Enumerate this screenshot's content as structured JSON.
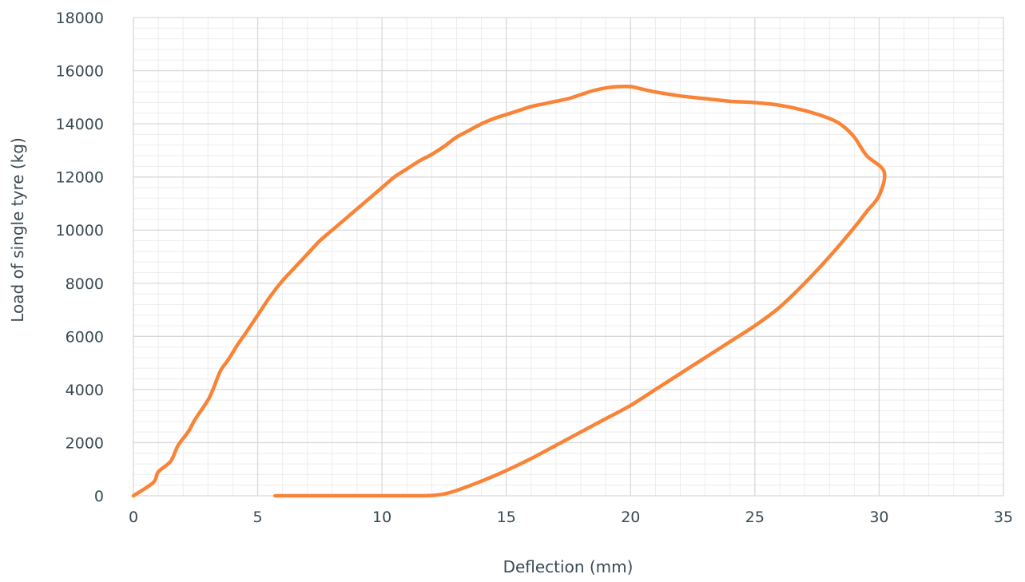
{
  "chart_data": {
    "type": "line",
    "title": "",
    "xlabel": "Deflection (mm)",
    "ylabel": "Load of single tyre (kg)",
    "xlim": [
      0,
      35
    ],
    "ylim": [
      0,
      18000
    ],
    "x_ticks": [
      0,
      5,
      10,
      15,
      20,
      25,
      30,
      35
    ],
    "y_ticks": [
      0,
      2000,
      4000,
      6000,
      8000,
      10000,
      12000,
      14000,
      16000,
      18000
    ],
    "x_tick_labels": [
      "0",
      "5",
      "10",
      "15",
      "20",
      "25",
      "30",
      "35"
    ],
    "y_tick_labels": [
      "0",
      "2000",
      "4000",
      "6000",
      "8000",
      "10000",
      "12000",
      "14000",
      "16000",
      "18000"
    ],
    "grid": true,
    "legend": "none",
    "line_color": "#F98336",
    "grid_color": "#D9D9D9",
    "minor_grid_color": "#EDEDED",
    "series": [
      {
        "x": [
          0,
          0.8,
          1.0,
          1.5,
          1.8,
          2.2,
          2.5,
          3.0,
          3.2,
          3.5,
          3.8,
          4.2,
          4.5,
          5.0,
          5.5,
          6.0,
          6.5,
          7.0,
          7.5,
          8.0,
          8.5,
          9.0,
          9.5,
          10.0,
          10.5,
          11.0,
          11.5,
          12.0,
          12.5,
          13.0,
          13.5,
          14.0,
          14.5,
          15.0,
          15.5,
          16.0,
          16.5,
          17.0,
          17.5,
          18.0,
          18.5,
          19.0,
          19.5,
          20.0,
          20.5,
          21.0,
          22.0,
          23.0,
          24.0,
          25.0,
          26.0,
          27.0,
          28.0,
          28.5,
          29.0,
          29.5,
          30.2,
          30.0,
          29.5,
          29.0,
          28.0,
          27.0,
          26.0,
          25.0,
          24.0,
          23.0,
          22.0,
          21.0,
          20.0,
          19.0,
          18.0,
          17.0,
          16.0,
          15.0,
          14.0,
          13.0,
          12.5,
          12.0,
          11.5,
          11.0,
          10.0,
          9.0,
          8.0,
          7.0,
          6.0,
          5.7
        ],
        "y": [
          0,
          500,
          900,
          1300,
          1900,
          2400,
          2900,
          3600,
          4000,
          4700,
          5100,
          5700,
          6100,
          6800,
          7500,
          8100,
          8600,
          9100,
          9600,
          10000,
          10400,
          10800,
          11200,
          11600,
          12000,
          12300,
          12600,
          12850,
          13150,
          13500,
          13750,
          14000,
          14200,
          14350,
          14500,
          14650,
          14750,
          14850,
          14950,
          15100,
          15250,
          15350,
          15400,
          15400,
          15300,
          15200,
          15050,
          14950,
          14850,
          14800,
          14700,
          14500,
          14200,
          13950,
          13500,
          12800,
          12200,
          11300,
          10700,
          10100,
          9000,
          8000,
          7100,
          6400,
          5800,
          5200,
          4600,
          4000,
          3400,
          2900,
          2400,
          1900,
          1400,
          950,
          550,
          200,
          70,
          10,
          0,
          0,
          0,
          0,
          0,
          0,
          0,
          0
        ]
      }
    ]
  }
}
